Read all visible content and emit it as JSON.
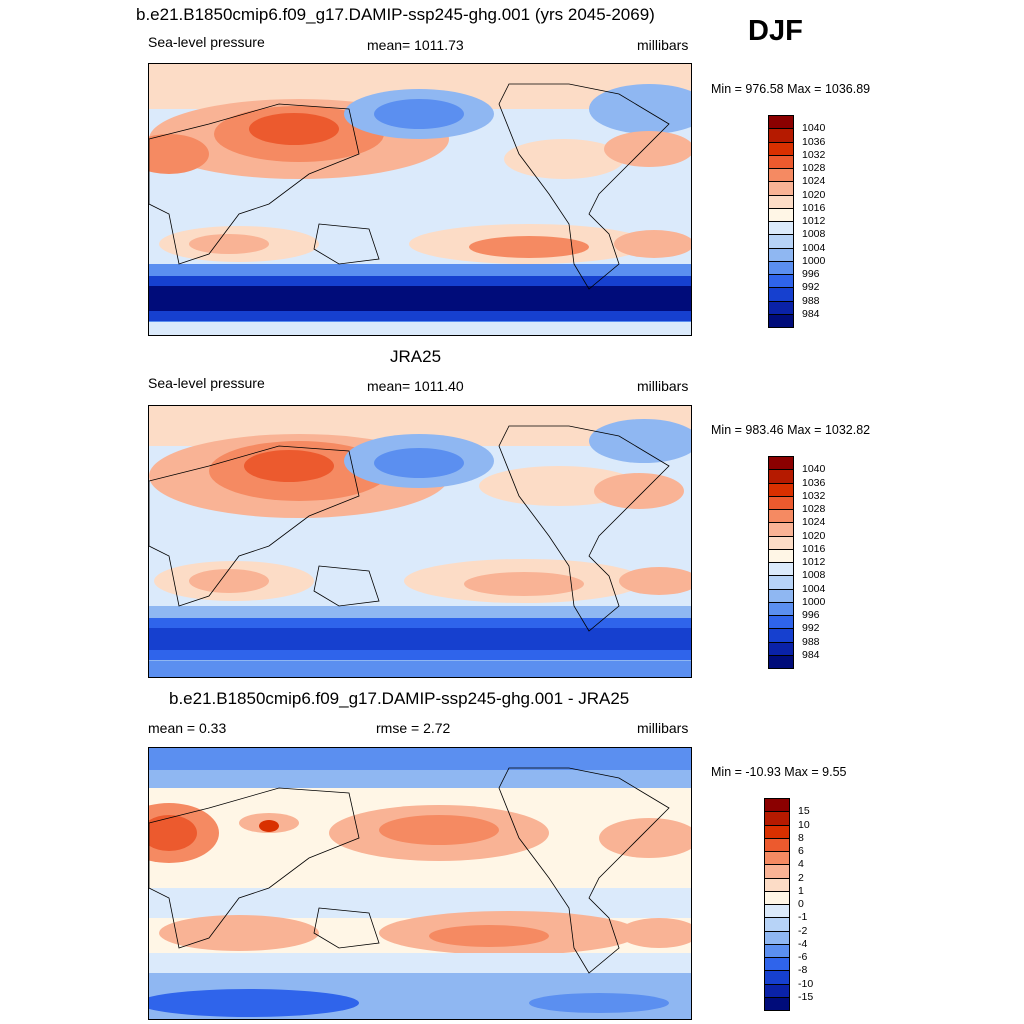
{
  "season": "DJF",
  "panels": [
    {
      "title": "b.e21.B1850cmip6.f09_g17.DAMIP-ssp245-ghg.001 (yrs 2045-2069)",
      "left": "Sea-level pressure",
      "center": "mean= 1011.73",
      "right": "millibars",
      "minmax": "Min = 976.58 Max = 1036.89",
      "levels": [
        "1040",
        "1036",
        "1032",
        "1028",
        "1024",
        "1020",
        "1016",
        "1012",
        "1008",
        "1004",
        "1000",
        "996",
        "992",
        "988",
        "984"
      ],
      "colors": [
        "#8b0000",
        "#b51a00",
        "#d93000",
        "#ec5a2e",
        "#f58a62",
        "#f9b395",
        "#fcdcc6",
        "#fff6e6",
        "#dbeafb",
        "#b7d3f7",
        "#8fb7f2",
        "#5b8ff0",
        "#2f64eb",
        "#1640cf",
        "#0a22a8",
        "#000c7a"
      ]
    },
    {
      "title": "JRA25",
      "left": "Sea-level pressure",
      "center": "mean= 1011.40",
      "right": "millibars",
      "minmax": "Min = 983.46 Max = 1032.82",
      "levels": [
        "1040",
        "1036",
        "1032",
        "1028",
        "1024",
        "1020",
        "1016",
        "1012",
        "1008",
        "1004",
        "1000",
        "996",
        "992",
        "988",
        "984"
      ],
      "colors": [
        "#8b0000",
        "#b51a00",
        "#d93000",
        "#ec5a2e",
        "#f58a62",
        "#f9b395",
        "#fcdcc6",
        "#fff6e6",
        "#dbeafb",
        "#b7d3f7",
        "#8fb7f2",
        "#5b8ff0",
        "#2f64eb",
        "#1640cf",
        "#0a22a8",
        "#000c7a"
      ]
    },
    {
      "title": "b.e21.B1850cmip6.f09_g17.DAMIP-ssp245-ghg.001 - JRA25",
      "left": "mean =   0.33",
      "center": "rmse =   2.72",
      "right": "millibars",
      "minmax": "Min = -10.93 Max =   9.55",
      "levels": [
        "15",
        "10",
        "8",
        "6",
        "4",
        "2",
        "1",
        "0",
        "-1",
        "-2",
        "-4",
        "-6",
        "-8",
        "-10",
        "-15"
      ],
      "colors": [
        "#8b0000",
        "#b51a00",
        "#d93000",
        "#ec5a2e",
        "#f58a62",
        "#f9b395",
        "#fcdcc6",
        "#fff6e6",
        "#dbeafb",
        "#b7d3f7",
        "#8fb7f2",
        "#5b8ff0",
        "#2f64eb",
        "#1640cf",
        "#0a22a8",
        "#000c7a"
      ]
    }
  ]
}
